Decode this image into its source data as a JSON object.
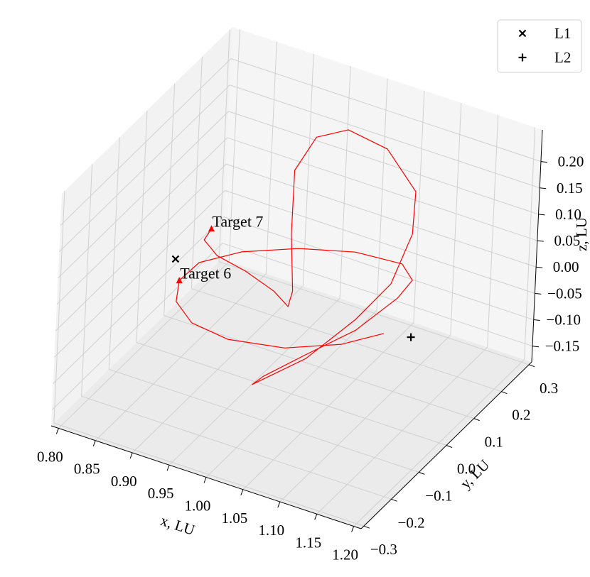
{
  "chart_data": {
    "type": "line3d",
    "xlabel": "x, LU",
    "ylabel": "y, LU",
    "zlabel": "z, LU",
    "xlim": [
      0.79,
      1.21
    ],
    "ylim": [
      -0.31,
      0.31
    ],
    "zlim": [
      -0.18,
      0.26
    ],
    "xticks": [
      {
        "value": 0.8,
        "label": "0.80"
      },
      0.85,
      {
        "value": 0.9,
        "label": "0.90"
      },
      0.95,
      {
        "value": 1.0,
        "label": "1.00"
      },
      1.05,
      {
        "value": 1.1,
        "label": "1.10"
      },
      1.15,
      {
        "value": 1.2,
        "label": "1.20"
      }
    ],
    "yticks": [
      {
        "value": -0.3,
        "label": "−0.3"
      },
      {
        "value": -0.2,
        "label": "−0.2"
      },
      {
        "value": -0.1,
        "label": "−0.1"
      },
      {
        "value": 0,
        "label": "0.0"
      },
      0.1,
      0.2,
      0.3
    ],
    "zticks": [
      {
        "value": -0.15,
        "label": "−0.15"
      },
      {
        "value": -0.1,
        "label": "−0.10"
      },
      {
        "value": -0.05,
        "label": "−0.05"
      },
      {
        "value": 0,
        "label": "0.00"
      },
      0.05,
      {
        "value": 0.1,
        "label": "0.10"
      },
      0.15,
      {
        "value": 0.2,
        "label": "0.20"
      }
    ],
    "grid": true,
    "legend": "upper right",
    "series": [
      {
        "color": "#ff0000",
        "x": [
          0.868,
          0.867,
          0.886,
          0.92,
          0.954,
          0.974,
          0.978,
          0.96,
          0.944,
          0.963,
          0.998,
          1.042,
          1.073,
          1.077,
          1.065,
          1.04,
          1.004,
          0.961,
          0.969,
          1.005,
          1.046,
          1.076,
          1.083,
          1.066,
          1.017,
          0.961,
          0.912,
          0.875,
          0.863,
          0.866,
          0.888,
          0.926,
          0.982,
          1.041,
          1.083
        ],
        "y": [
          0.043,
          0.02,
          0.018,
          0.031,
          0.046,
          0.046,
          0.049,
          0.086,
          0.133,
          0.156,
          0.176,
          0.203,
          0.23,
          0.213,
          0.174,
          0.117,
          0.037,
          -0.04,
          -0.022,
          0.032,
          0.102,
          0.171,
          0.204,
          0.21,
          0.17,
          0.113,
          0.036,
          -0.018,
          -0.056,
          -0.073,
          -0.073,
          -0.041,
          0.017,
          0.065,
          0.104
        ],
        "z": [
          0.05,
          0.04,
          0.02,
          0.0,
          -0.03,
          -0.05,
          -0.02,
          0.06,
          0.15,
          0.21,
          0.23,
          0.2,
          0.12,
          0.05,
          -0.03,
          -0.08,
          -0.13,
          -0.16,
          -0.15,
          -0.12,
          -0.09,
          -0.05,
          -0.03,
          -0.01,
          0.01,
          0.02,
          0.03,
          0.02,
          0.0,
          -0.03,
          -0.06,
          -0.09,
          -0.11,
          -0.1,
          -0.08
        ]
      }
    ],
    "points": [
      {
        "name": "L1",
        "marker": "x",
        "color": "#000000",
        "x": 0.837,
        "y": 0,
        "z": 0
      },
      {
        "name": "L2",
        "marker": "+",
        "color": "#000000",
        "x": 1.156,
        "y": 0,
        "z": 0
      }
    ],
    "annotations": [
      {
        "text": "Target 7",
        "color": "#ff0000",
        "x": 0.868,
        "y": 0.043,
        "z": 0.05
      },
      {
        "text": "Target 6",
        "color": "#ff0000",
        "x": 0.863,
        "y": -0.056,
        "z": 0.0
      }
    ]
  }
}
